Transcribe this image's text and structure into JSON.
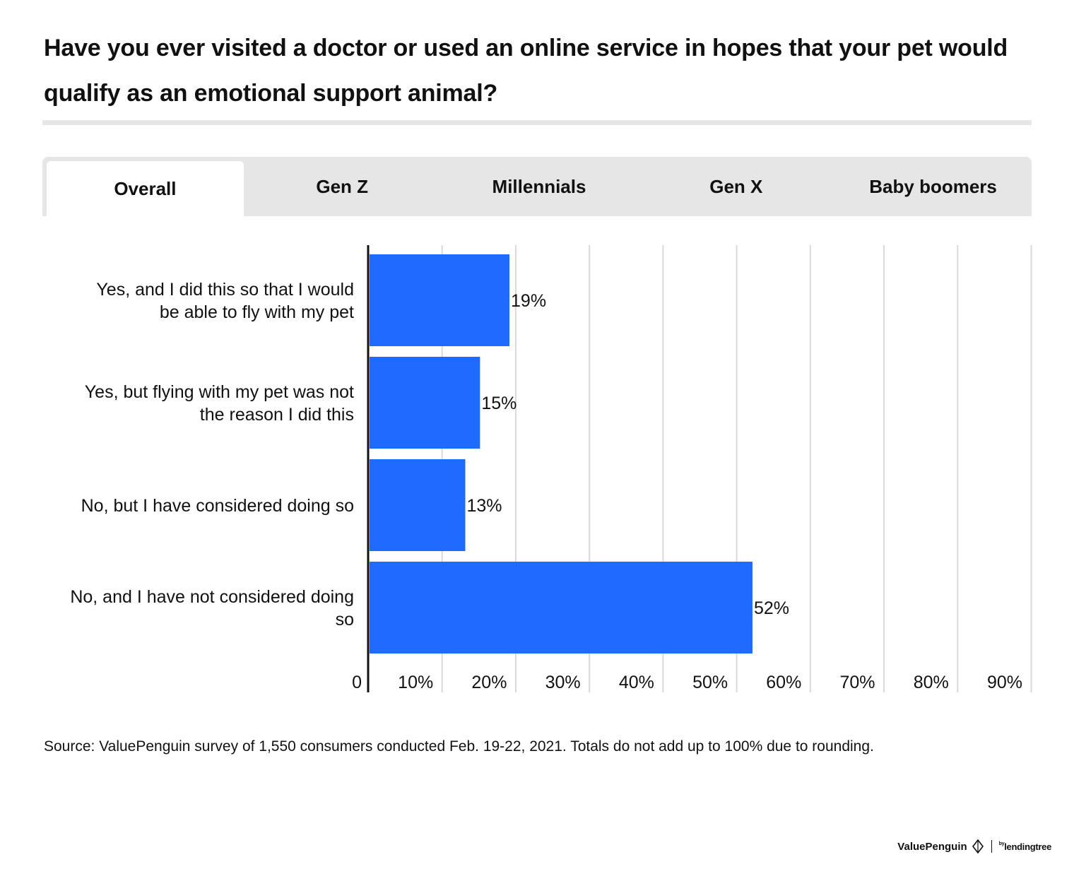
{
  "title": "Have you ever visited a doctor or used an online service in hopes that your pet would qualify as an emotional support animal?",
  "tabs": [
    {
      "label": "Overall",
      "active": true
    },
    {
      "label": "Gen Z",
      "active": false
    },
    {
      "label": "Millennials",
      "active": false
    },
    {
      "label": "Gen X",
      "active": false
    },
    {
      "label": "Baby boomers",
      "active": false
    }
  ],
  "chart_data": {
    "type": "bar",
    "orientation": "horizontal",
    "categories": [
      "Yes, and I did this so that I would be able to fly with my pet",
      "Yes, but flying with my pet was not the reason I did this",
      "No, but I have considered doing so",
      "No, and I have not considered doing so"
    ],
    "values": [
      19,
      15,
      13,
      52
    ],
    "data_labels": [
      "19%",
      "15%",
      "13%",
      "52%"
    ],
    "xlim": [
      0,
      90
    ],
    "x_ticks": [
      "0",
      "10%",
      "20%",
      "30%",
      "40%",
      "50%",
      "60%",
      "70%",
      "80%",
      "90%"
    ],
    "bar_color": "#1f6bff",
    "grid": true
  },
  "source": "Source: ValuePenguin survey of 1,550 consumers conducted Feb. 19-22, 2021. Totals do not add up to 100% due to rounding.",
  "logo": {
    "brand": "ValuePenguin",
    "by": "by",
    "partner": "lendingtree"
  }
}
